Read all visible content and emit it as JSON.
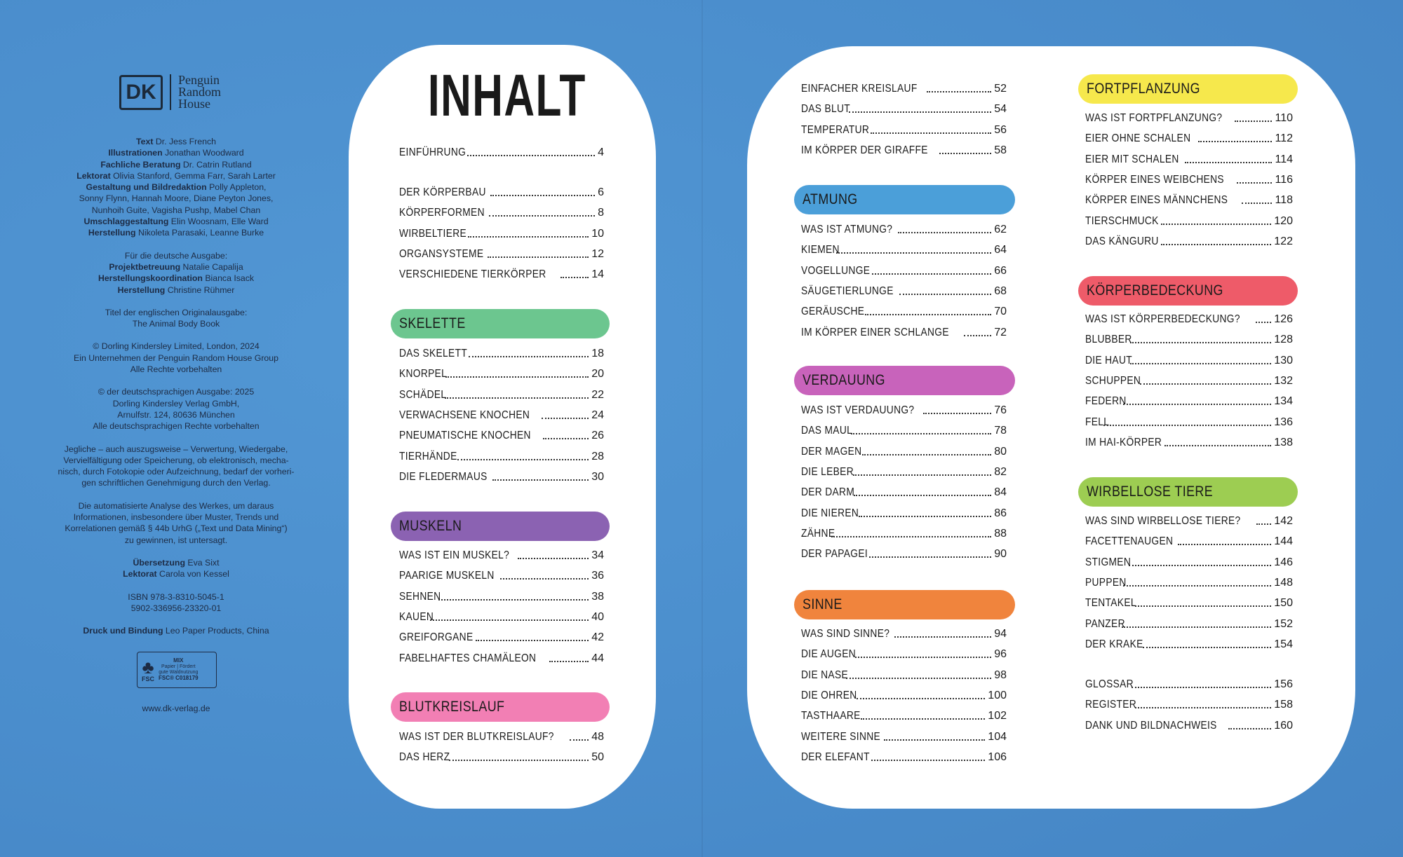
{
  "imprint": {
    "logo": {
      "dk": "DK",
      "prh": [
        "Penguin",
        "Random",
        "House"
      ]
    },
    "paragraphs": [
      [
        {
          "bold": "Text",
          "text": " Dr. Jess French"
        },
        {
          "bold": "Illustrationen",
          "text": " Jonathan Woodward"
        },
        {
          "bold": "Fachliche Beratung",
          "text": " Dr. Catrin Rutland"
        },
        {
          "bold": "Lektorat",
          "text": " Olivia Stanford, Gemma Farr, Sarah Larter"
        },
        {
          "bold": "Gestaltung und Bildredaktion",
          "text": " Polly Appleton,"
        },
        {
          "bold": "",
          "text": "Sonny Flynn, Hannah Moore, Diane Peyton Jones,"
        },
        {
          "bold": "",
          "text": "Nunhoih Guite, Vagisha Pushp, Mabel Chan"
        },
        {
          "bold": "Umschlaggestaltung",
          "text": " Elin Woosnam, Elle Ward"
        },
        {
          "bold": "Herstellung",
          "text": " Nikoleta Parasaki, Leanne Burke"
        }
      ],
      [
        {
          "bold": "",
          "text": "Für die deutsche Ausgabe:"
        },
        {
          "bold": "Projektbetreuung",
          "text": " Natalie Capalija"
        },
        {
          "bold": "Herstellungskoordination",
          "text": " Bianca Isack"
        },
        {
          "bold": "Herstellung",
          "text": " Christine Rühmer"
        }
      ],
      [
        {
          "bold": "",
          "text": "Titel der englischen Originalausgabe:"
        },
        {
          "bold": "",
          "text": "The Animal Body Book"
        }
      ],
      [
        {
          "bold": "",
          "text": "© Dorling Kindersley Limited, London, 2024"
        },
        {
          "bold": "",
          "text": "Ein Unternehmen der Penguin Random House Group"
        },
        {
          "bold": "",
          "text": "Alle Rechte vorbehalten"
        }
      ],
      [
        {
          "bold": "",
          "text": "© der deutschsprachigen Ausgabe: 2025"
        },
        {
          "bold": "",
          "text": "Dorling Kindersley Verlag GmbH,"
        },
        {
          "bold": "",
          "text": "Arnulfstr. 124, 80636 München"
        },
        {
          "bold": "",
          "text": "Alle deutschsprachigen Rechte vorbehalten"
        }
      ],
      [
        {
          "bold": "",
          "text": "Jegliche – auch auszugsweise – Verwertung, Wiedergabe,"
        },
        {
          "bold": "",
          "text": "Vervielfältigung oder Speicherung, ob elektronisch, mecha-"
        },
        {
          "bold": "",
          "text": "nisch, durch Fotokopie oder Aufzeichnung, bedarf der vorheri-"
        },
        {
          "bold": "",
          "text": "gen schriftlichen Genehmigung durch den Verlag."
        }
      ],
      [
        {
          "bold": "",
          "text": "Die automatisierte Analyse des Werkes, um daraus"
        },
        {
          "bold": "",
          "text": "Informationen, insbesondere über Muster, Trends und"
        },
        {
          "bold": "",
          "text": "Korrelationen gemäß § 44b UrhG („Text und Data Mining“)"
        },
        {
          "bold": "",
          "text": "zu gewinnen, ist untersagt."
        }
      ],
      [
        {
          "bold": "Übersetzung",
          "text": " Eva Sixt"
        },
        {
          "bold": "Lektorat",
          "text": " Carola von Kessel"
        }
      ],
      [
        {
          "bold": "",
          "text": "ISBN 978-3-8310-5045-1"
        },
        {
          "bold": "",
          "text": "5902-336956-23320-01"
        }
      ],
      [
        {
          "bold": "Druck und Bindung",
          "text": " Leo Paper Products, China"
        }
      ]
    ],
    "fsc": {
      "brand": "FSC",
      "mix": "MIX",
      "line1": "Papier | Fördert",
      "line2": "gute Waldnutzung",
      "code": "FSC® C018179"
    },
    "url": "www.dk-verlag.de"
  },
  "toc": {
    "title": "INHALT",
    "sections": [
      {
        "title": "",
        "color": "",
        "entries": [
          {
            "label": "Einführung",
            "page": "4"
          }
        ]
      },
      {
        "title": "",
        "color": "",
        "entries": [
          {
            "label": "Der Körperbau",
            "page": "6"
          },
          {
            "label": "Körperformen",
            "page": "8"
          },
          {
            "label": "Wirbeltiere",
            "page": "10"
          },
          {
            "label": "Organsysteme",
            "page": "12"
          },
          {
            "label": "Verschiedene Tierkörper",
            "page": "14"
          }
        ]
      },
      {
        "title": "Skelette",
        "color": "#6cc68f",
        "entries": [
          {
            "label": "Das Skelett",
            "page": "18"
          },
          {
            "label": "Knorpel",
            "page": "20"
          },
          {
            "label": "Schädel",
            "page": "22"
          },
          {
            "label": "Verwachsene Knochen",
            "page": "24"
          },
          {
            "label": "Pneumatische Knochen",
            "page": "26"
          },
          {
            "label": "Tierhände",
            "page": "28"
          },
          {
            "label": "Die Fledermaus",
            "page": "30"
          }
        ]
      },
      {
        "title": "Muskeln",
        "color": "#8b62b2",
        "entries": [
          {
            "label": "Was ist ein Muskel?",
            "page": "34"
          },
          {
            "label": "Paarige Muskeln",
            "page": "36"
          },
          {
            "label": "Sehnen",
            "page": "38"
          },
          {
            "label": "Kauen",
            "page": "40"
          },
          {
            "label": "Greiforgane",
            "page": "42"
          },
          {
            "label": "Fabelhaftes Chamäleon",
            "page": "44"
          }
        ]
      },
      {
        "title": "Blutkreislauf",
        "color": "#f27fb4",
        "entries": [
          {
            "label": "Was ist der Blutkreislauf?",
            "page": "48"
          },
          {
            "label": "Das Herz",
            "page": "50"
          }
        ]
      },
      {
        "title": "",
        "color": "",
        "entries": [
          {
            "label": "Einfacher Kreislauf",
            "page": "52"
          },
          {
            "label": "Das Blut",
            "page": "54"
          },
          {
            "label": "Temperatur",
            "page": "56"
          },
          {
            "label": "Im Körper der Giraffe",
            "page": "58"
          }
        ]
      },
      {
        "title": "Atmung",
        "color": "#4b9fd9",
        "entries": [
          {
            "label": "Was ist Atmung?",
            "page": "62"
          },
          {
            "label": "Kiemen",
            "page": "64"
          },
          {
            "label": "Vogellunge",
            "page": "66"
          },
          {
            "label": "Säugetierlunge",
            "page": "68"
          },
          {
            "label": "Geräusche",
            "page": "70"
          },
          {
            "label": "Im Körper einer Schlange",
            "page": "72"
          }
        ]
      },
      {
        "title": "Verdauung",
        "color": "#c863bb",
        "entries": [
          {
            "label": "Was ist Verdauung?",
            "page": "76"
          },
          {
            "label": "Das Maul",
            "page": "78"
          },
          {
            "label": "Der Magen",
            "page": "80"
          },
          {
            "label": "Die Leber",
            "page": "82"
          },
          {
            "label": "Der Darm",
            "page": "84"
          },
          {
            "label": "Die Nieren",
            "page": "86"
          },
          {
            "label": "Zähne",
            "page": "88"
          },
          {
            "label": "Der Papagei",
            "page": "90"
          }
        ]
      },
      {
        "title": "Sinne",
        "color": "#f0843d",
        "entries": [
          {
            "label": "Was sind Sinne?",
            "page": "94"
          },
          {
            "label": "Die Augen",
            "page": "96"
          },
          {
            "label": "Die Nase",
            "page": "98"
          },
          {
            "label": "Die Ohren",
            "page": "100"
          },
          {
            "label": "Tasthaare",
            "page": "102"
          },
          {
            "label": "Weitere Sinne",
            "page": "104"
          },
          {
            "label": "Der Elefant",
            "page": "106"
          }
        ]
      },
      {
        "title": "Fortpflanzung",
        "color": "#f6e84c",
        "entries": [
          {
            "label": "Was ist Fortpflanzung?",
            "page": "110"
          },
          {
            "label": "Eier ohne Schalen",
            "page": "112"
          },
          {
            "label": "Eier mit Schalen",
            "page": "114"
          },
          {
            "label": "Körper eines Weibchens",
            "page": "116"
          },
          {
            "label": "Körper eines Männchens",
            "page": "118"
          },
          {
            "label": "Tierschmuck",
            "page": "120"
          },
          {
            "label": "Das Känguru",
            "page": "122"
          }
        ]
      },
      {
        "title": "Körperbedeckung",
        "color": "#ee5b69",
        "entries": [
          {
            "label": "Was ist Körperbedeckung?",
            "page": "126"
          },
          {
            "label": "Blubber",
            "page": "128"
          },
          {
            "label": "Die Haut",
            "page": "130"
          },
          {
            "label": "Schuppen",
            "page": "132"
          },
          {
            "label": "Federn",
            "page": "134"
          },
          {
            "label": "Fell",
            "page": "136"
          },
          {
            "label": "Im Hai-Körper",
            "page": "138"
          }
        ]
      },
      {
        "title": "Wirbellose Tiere",
        "color": "#9dcd52",
        "entries": [
          {
            "label": "Was sind wirbellose Tiere?",
            "page": "142"
          },
          {
            "label": "Facettenaugen",
            "page": "144"
          },
          {
            "label": "Stigmen",
            "page": "146"
          },
          {
            "label": "Puppen",
            "page": "148"
          },
          {
            "label": "Tentakel",
            "page": "150"
          },
          {
            "label": "Panzer",
            "page": "152"
          },
          {
            "label": "Der Krake",
            "page": "154"
          }
        ]
      },
      {
        "title": "",
        "color": "",
        "entries": [
          {
            "label": "Glossar",
            "page": "156"
          },
          {
            "label": "Register",
            "page": "158"
          },
          {
            "label": "Dank und Bildnachweis",
            "page": "160"
          }
        ]
      }
    ]
  }
}
